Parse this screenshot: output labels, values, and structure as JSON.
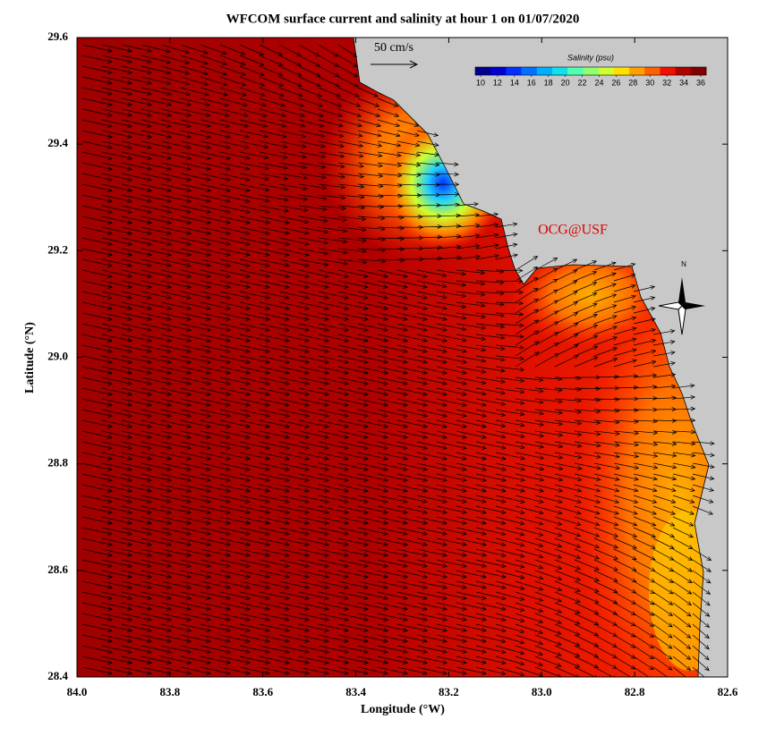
{
  "title": "WFCOM surface current and salinity at hour 1 on 01/07/2020",
  "x_label": "Longitude (°W)",
  "y_label": "Latitude (°N)",
  "xlim": [
    84.0,
    82.6
  ],
  "ylim": [
    28.4,
    29.6
  ],
  "xticks": [
    {
      "value": 84.0,
      "label": "84.0"
    },
    {
      "value": 83.8,
      "label": "83.8"
    },
    {
      "value": 83.6,
      "label": "83.6"
    },
    {
      "value": 83.4,
      "label": "83.4"
    },
    {
      "value": 83.2,
      "label": "83.2"
    },
    {
      "value": 83.0,
      "label": "83.0"
    },
    {
      "value": 82.8,
      "label": "82.8"
    },
    {
      "value": 82.6,
      "label": "82.6"
    }
  ],
  "yticks": [
    {
      "value": 28.4,
      "label": "28.4"
    },
    {
      "value": 28.6,
      "label": "28.6"
    },
    {
      "value": 28.8,
      "label": "28.8"
    },
    {
      "value": 29.0,
      "label": "29.0"
    },
    {
      "value": 29.2,
      "label": "29.2"
    },
    {
      "value": 29.4,
      "label": "29.4"
    },
    {
      "value": 29.6,
      "label": "29.6"
    }
  ],
  "scale_label": "50 cm/s",
  "credit": "OCG@USF",
  "north_label": "N",
  "colorbar": {
    "title": "Salinity (psu)",
    "clim": [
      10,
      36
    ],
    "ticks": [
      10,
      12,
      14,
      16,
      18,
      20,
      22,
      24,
      26,
      28,
      30,
      32,
      34,
      36
    ],
    "colors": [
      "#00008f",
      "#0000d0",
      "#0030ff",
      "#0070ff",
      "#00b0ff",
      "#10e0f0",
      "#50ffb0",
      "#90ff70",
      "#d0ff30",
      "#ffe000",
      "#ffa000",
      "#ff6000",
      "#f01000",
      "#b00000",
      "#800000"
    ]
  }
}
